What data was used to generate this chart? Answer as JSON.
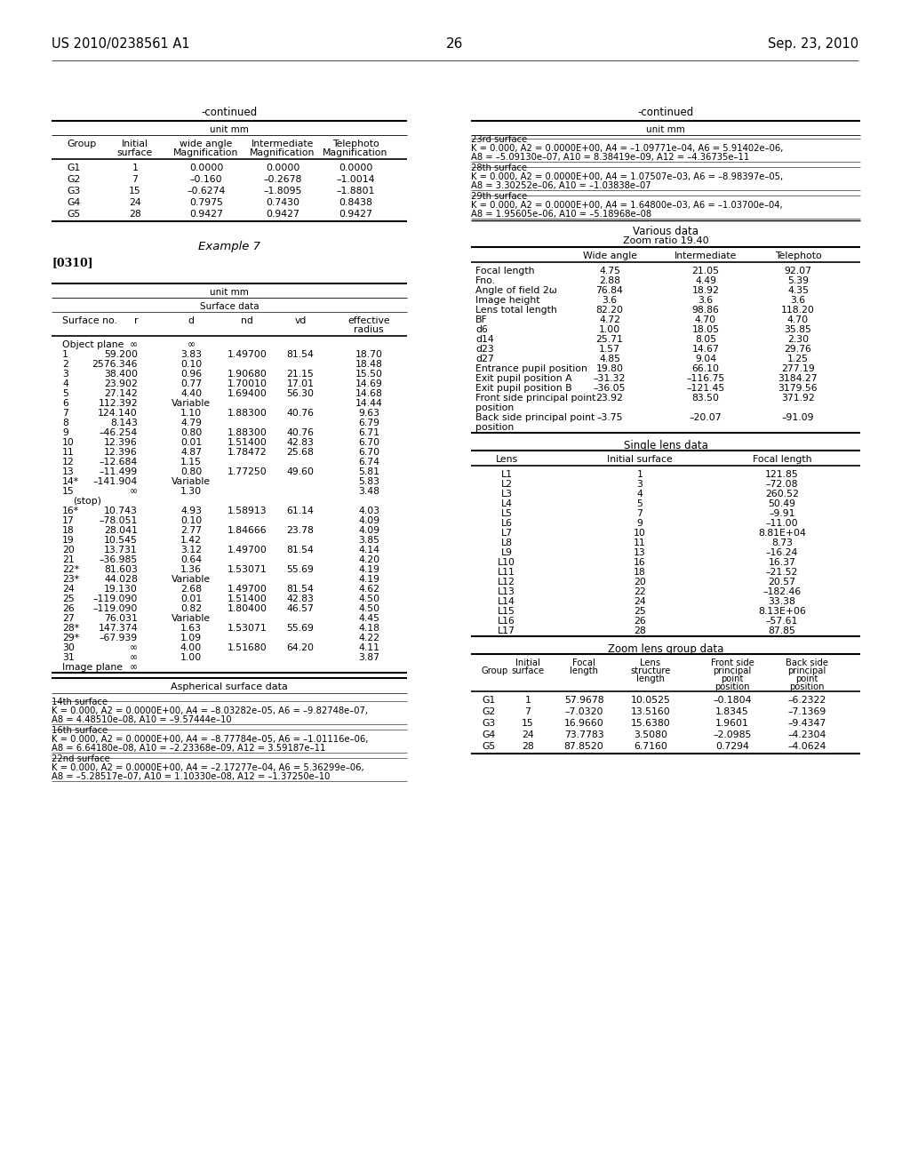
{
  "page_number": "26",
  "patent_number": "US 2010/0238561 A1",
  "date": "Sep. 23, 2010",
  "left_continued_table": {
    "title": "-continued",
    "unit": "unit mm",
    "col_headers_line1": [
      "Group",
      "Initial",
      "wide angle",
      "Intermediate",
      "Telephoto"
    ],
    "col_headers_line2": [
      "",
      "surface",
      "Magnification",
      "Magnification",
      "Magnification"
    ],
    "rows": [
      [
        "G1",
        "1",
        "0.0000",
        "0.0000",
        "0.0000"
      ],
      [
        "G2",
        "7",
        "–0.160",
        "–0.2678",
        "–1.0014"
      ],
      [
        "G3",
        "15",
        "–0.6274",
        "–1.8095",
        "–1.8801"
      ],
      [
        "G4",
        "24",
        "0.7975",
        "0.7430",
        "0.8438"
      ],
      [
        "G5",
        "28",
        "0.9427",
        "0.9427",
        "0.9427"
      ]
    ]
  },
  "example7_label": "Example 7",
  "paragraph_label": "[0310]",
  "surface_table": {
    "unit": "unit mm",
    "subtitle": "Surface data",
    "col_headers_line1": [
      "Surface no.",
      "r",
      "d",
      "nd",
      "vd",
      "effective"
    ],
    "col_headers_line2": [
      "",
      "",
      "",
      "",
      "",
      "radius"
    ],
    "rows": [
      [
        "Object plane",
        "∞",
        "∞",
        "",
        "",
        ""
      ],
      [
        "1",
        "59.200",
        "3.83",
        "1.49700",
        "81.54",
        "18.70"
      ],
      [
        "2",
        "2576.346",
        "0.10",
        "",
        "",
        "18.48"
      ],
      [
        "3",
        "38.400",
        "0.96",
        "1.90680",
        "21.15",
        "15.50"
      ],
      [
        "4",
        "23.902",
        "0.77",
        "1.70010",
        "17.01",
        "14.69"
      ],
      [
        "5",
        "27.142",
        "4.40",
        "1.69400",
        "56.30",
        "14.68"
      ],
      [
        "6",
        "112.392",
        "Variable",
        "",
        "",
        "14.44"
      ],
      [
        "7",
        "124.140",
        "1.10",
        "1.88300",
        "40.76",
        "9.63"
      ],
      [
        "8",
        "8.143",
        "4.79",
        "",
        "",
        "6.79"
      ],
      [
        "9",
        "–46.254",
        "0.80",
        "1.88300",
        "40.76",
        "6.71"
      ],
      [
        "10",
        "12.396",
        "0.01",
        "1.51400",
        "42.83",
        "6.70"
      ],
      [
        "11",
        "12.396",
        "4.87",
        "1.78472",
        "25.68",
        "6.70"
      ],
      [
        "12",
        "–12.684",
        "1.15",
        "",
        "",
        "6.74"
      ],
      [
        "13",
        "–11.499",
        "0.80",
        "1.77250",
        "49.60",
        "5.81"
      ],
      [
        "14*",
        "–141.904",
        "Variable",
        "",
        "",
        "5.83"
      ],
      [
        "15",
        "∞",
        "1.30",
        "",
        "",
        "3.48"
      ],
      [
        "(stop)",
        "",
        "",
        "",
        "",
        ""
      ],
      [
        "16*",
        "10.743",
        "4.93",
        "1.58913",
        "61.14",
        "4.03"
      ],
      [
        "17",
        "–78.051",
        "0.10",
        "",
        "",
        "4.09"
      ],
      [
        "18",
        "28.041",
        "2.77",
        "1.84666",
        "23.78",
        "4.09"
      ],
      [
        "19",
        "10.545",
        "1.42",
        "",
        "",
        "3.85"
      ],
      [
        "20",
        "13.731",
        "3.12",
        "1.49700",
        "81.54",
        "4.14"
      ],
      [
        "21",
        "–36.985",
        "0.64",
        "",
        "",
        "4.20"
      ],
      [
        "22*",
        "81.603",
        "1.36",
        "1.53071",
        "55.69",
        "4.19"
      ],
      [
        "23*",
        "44.028",
        "Variable",
        "",
        "",
        "4.19"
      ],
      [
        "24",
        "19.130",
        "2.68",
        "1.49700",
        "81.54",
        "4.62"
      ],
      [
        "25",
        "–119.090",
        "0.01",
        "1.51400",
        "42.83",
        "4.50"
      ],
      [
        "26",
        "–119.090",
        "0.82",
        "1.80400",
        "46.57",
        "4.50"
      ],
      [
        "27",
        "76.031",
        "Variable",
        "",
        "",
        "4.45"
      ],
      [
        "28*",
        "147.374",
        "1.63",
        "1.53071",
        "55.69",
        "4.18"
      ],
      [
        "29*",
        "–67.939",
        "1.09",
        "",
        "",
        "4.22"
      ],
      [
        "30",
        "∞",
        "4.00",
        "1.51680",
        "64.20",
        "4.11"
      ],
      [
        "31",
        "∞",
        "1.00",
        "",
        "",
        "3.87"
      ],
      [
        "Image plane",
        "∞",
        "",
        "",
        "",
        ""
      ]
    ]
  },
  "aspherical_section": {
    "title": "Aspherical surface data",
    "entries": [
      {
        "surface": "14th surface",
        "lines": [
          "K = 0.000, A2 = 0.0000E+00, A4 = –8.03282e–05, A6 = –9.82748e–07,",
          "A8 = 4.48510e–08, A10 = –9.57444e–10"
        ]
      },
      {
        "surface": "16th surface",
        "lines": [
          "K = 0.000, A2 = 0.0000E+00, A4 = –8.77784e–05, A6 = –1.01116e–06,",
          "A8 = 6.64180e–08, A10 = –2.23368e–09, A12 = 3.59187e–11"
        ]
      },
      {
        "surface": "22nd surface",
        "lines": [
          "K = 0.000, A2 = 0.0000E+00, A4 = –2.17277e–04, A6 = 5.36299e–06,",
          "A8 = –5.28517e–07, A10 = 1.10330e–08, A12 = –1.37250e–10"
        ]
      }
    ]
  },
  "right_continued_table": {
    "title": "-continued",
    "unit": "unit mm",
    "aspherical_entries": [
      {
        "surface": "23rd surface",
        "lines": [
          "K = 0.000, A2 = 0.0000E+00, A4 = –1.09771e–04, A6 = 5.91402e–06,",
          "A8 = –5.09130e–07, A10 = 8.38419e–09, A12 = –4.36735e–11"
        ]
      },
      {
        "surface": "28th surface",
        "lines": [
          "K = 0.000, A2 = 0.0000E+00, A4 = 1.07507e–03, A6 = –8.98397e–05,",
          "A8 = 3.30252e–06, A10 = –1.03838e–07"
        ]
      },
      {
        "surface": "29th surface",
        "lines": [
          "K = 0.000, A2 = 0.0000E+00, A4 = 1.64800e–03, A6 = –1.03700e–04,",
          "A8 = 1.95605e–06, A10 = –5.18968e–08"
        ]
      }
    ]
  },
  "various_data": {
    "title": "Various data",
    "zoom_ratio": "Zoom ratio 19.40",
    "col_headers": [
      "",
      "Wide angle",
      "Intermediate",
      "Telephoto"
    ],
    "rows": [
      [
        "Focal length",
        "4.75",
        "21.05",
        "92.07"
      ],
      [
        "Fno.",
        "2.88",
        "4.49",
        "5.39"
      ],
      [
        "Angle of field 2ω",
        "76.84",
        "18.92",
        "4.35"
      ],
      [
        "Image height",
        "3.6",
        "3.6",
        "3.6"
      ],
      [
        "Lens total length",
        "82.20",
        "98.86",
        "118.20"
      ],
      [
        "BF",
        "4.72",
        "4.70",
        "4.70"
      ],
      [
        "d6",
        "1.00",
        "18.05",
        "35.85"
      ],
      [
        "d14",
        "25.71",
        "8.05",
        "2.30"
      ],
      [
        "d23",
        "1.57",
        "14.67",
        "29.76"
      ],
      [
        "d27",
        "4.85",
        "9.04",
        "1.25"
      ],
      [
        "Entrance pupil position",
        "19.80",
        "66.10",
        "277.19"
      ],
      [
        "Exit pupil position A",
        "–31.32",
        "–116.75",
        "3184.27"
      ],
      [
        "Exit pupil position B",
        "–36.05",
        "–121.45",
        "3179.56"
      ],
      [
        "Front side principal point",
        "23.92",
        "83.50",
        "371.92"
      ],
      [
        "position",
        "",
        "",
        ""
      ],
      [
        "Back side principal point",
        "–3.75",
        "–20.07",
        "–91.09"
      ],
      [
        "position",
        "",
        "",
        ""
      ]
    ]
  },
  "single_lens_table": {
    "title": "Single lens data",
    "col_headers": [
      "Lens",
      "Initial surface",
      "Focal length"
    ],
    "rows": [
      [
        "L1",
        "1",
        "121.85"
      ],
      [
        "L2",
        "3",
        "–72.08"
      ],
      [
        "L3",
        "4",
        "260.52"
      ],
      [
        "L4",
        "5",
        "50.49"
      ],
      [
        "L5",
        "7",
        "–9.91"
      ],
      [
        "L6",
        "9",
        "–11.00"
      ],
      [
        "L7",
        "10",
        "8.81E+04"
      ],
      [
        "L8",
        "11",
        "8.73"
      ],
      [
        "L9",
        "13",
        "–16.24"
      ],
      [
        "L10",
        "16",
        "16.37"
      ],
      [
        "L11",
        "18",
        "–21.52"
      ],
      [
        "L12",
        "20",
        "20.57"
      ],
      [
        "L13",
        "22",
        "–182.46"
      ],
      [
        "L14",
        "24",
        "33.38"
      ],
      [
        "L15",
        "25",
        "8.13E+06"
      ],
      [
        "L16",
        "26",
        "–57.61"
      ],
      [
        "L17",
        "28",
        "87.85"
      ]
    ]
  },
  "zoom_lens_table": {
    "title": "Zoom lens group data",
    "col_headers_line1": [
      "",
      "Initial",
      "Focal",
      "Lens",
      "Front side",
      "Back side"
    ],
    "col_headers_line2": [
      "Group",
      "surface",
      "length",
      "structure",
      "principal",
      "principal"
    ],
    "col_headers_line3": [
      "",
      "",
      "",
      "length",
      "point",
      "point"
    ],
    "col_headers_line4": [
      "",
      "",
      "",
      "",
      "position",
      "position"
    ],
    "rows": [
      [
        "G1",
        "1",
        "57.9678",
        "10.0525",
        "–0.1804",
        "–6.2322"
      ],
      [
        "G2",
        "7",
        "–7.0320",
        "13.5160",
        "1.8345",
        "–7.1369"
      ],
      [
        "G3",
        "15",
        "16.9660",
        "15.6380",
        "1.9601",
        "–9.4347"
      ],
      [
        "G4",
        "24",
        "73.7783",
        "3.5080",
        "–2.0985",
        "–4.2304"
      ],
      [
        "G5",
        "28",
        "87.8520",
        "6.7160",
        "0.7294",
        "–4.0624"
      ]
    ]
  }
}
